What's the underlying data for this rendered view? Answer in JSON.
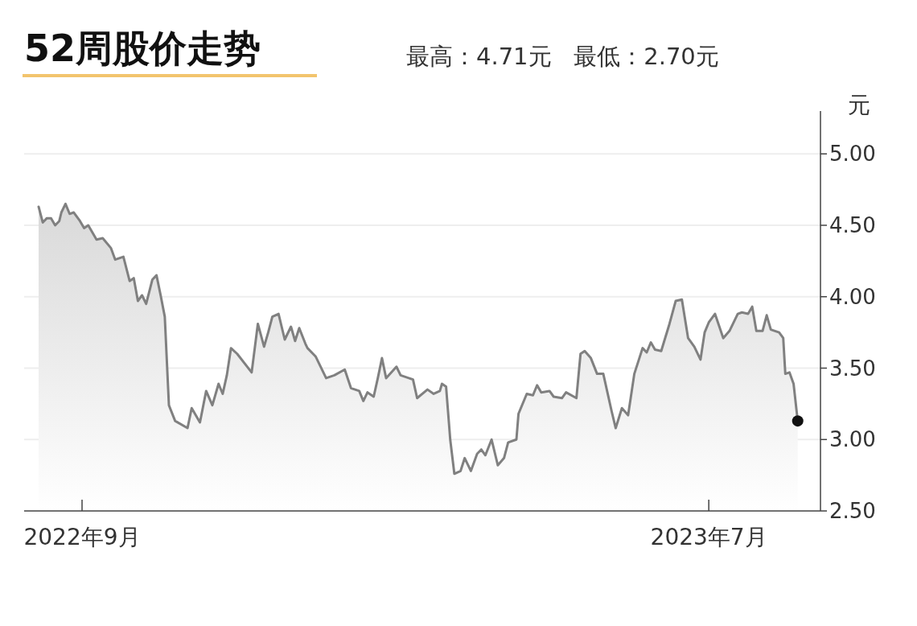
{
  "chart_data": {
    "type": "area",
    "title": "52周股价走势",
    "subtitle": "最高：4.71元   最低：2.70元",
    "ylabel": "元",
    "xlim": [
      "2022-08-04",
      "2023-08-24"
    ],
    "xticks": [
      {
        "value": "2022-09-01",
        "label": "2022年9月"
      },
      {
        "value": "2023-07-01",
        "label": "2023年7月"
      }
    ],
    "ylim": [
      2.5,
      5.3
    ],
    "yticks": [
      {
        "value": 2.5,
        "label": "2.50"
      },
      {
        "value": 3,
        "label": "3.00"
      },
      {
        "value": 3.5,
        "label": "3.50"
      },
      {
        "value": 4,
        "label": "4.00"
      },
      {
        "value": 4.5,
        "label": "4.50"
      },
      {
        "value": 5,
        "label": "5.00"
      }
    ],
    "grid": "y",
    "series": [
      {
        "color": "#808080",
        "marker": "none",
        "x": [
          "2022-08-11",
          "2022-08-13",
          "2022-08-15",
          "2022-08-17",
          "2022-08-19",
          "2022-08-21",
          "2022-08-22",
          "2022-08-24",
          "2022-08-26",
          "2022-08-28",
          "2022-08-31",
          "2022-09-02",
          "2022-09-04",
          "2022-09-08",
          "2022-09-11",
          "2022-09-15",
          "2022-09-17",
          "2022-09-21",
          "2022-09-24",
          "2022-09-26",
          "2022-09-28",
          "2022-09-30",
          "2022-10-02",
          "2022-10-05",
          "2022-10-07",
          "2022-10-09",
          "2022-10-11",
          "2022-10-13",
          "2022-10-16",
          "2022-10-22",
          "2022-10-24",
          "2022-10-28",
          "2022-10-31",
          "2022-11-03",
          "2022-11-06",
          "2022-11-08",
          "2022-11-10",
          "2022-11-12",
          "2022-11-15",
          "2022-11-22",
          "2022-11-25",
          "2022-11-28",
          "2022-11-30",
          "2022-12-02",
          "2022-12-05",
          "2022-12-08",
          "2022-12-11",
          "2022-12-13",
          "2022-12-15",
          "2022-12-18",
          "2022-12-19",
          "2022-12-23",
          "2022-12-28",
          "2023-01-01",
          "2023-01-06",
          "2023-01-09",
          "2023-01-13",
          "2023-01-15",
          "2023-01-17",
          "2023-01-20",
          "2023-01-22",
          "2023-01-24",
          "2023-01-26",
          "2023-01-31",
          "2023-02-02",
          "2023-02-08",
          "2023-02-10",
          "2023-02-15",
          "2023-02-18",
          "2023-02-21",
          "2023-02-22",
          "2023-02-24",
          "2023-02-26",
          "2023-02-28",
          "2023-03-03",
          "2023-03-05",
          "2023-03-08",
          "2023-03-11",
          "2023-03-13",
          "2023-03-15",
          "2023-03-18",
          "2023-03-21",
          "2023-03-24",
          "2023-03-26",
          "2023-03-30",
          "2023-03-31",
          "2023-04-04",
          "2023-04-07",
          "2023-04-09",
          "2023-04-11",
          "2023-04-15",
          "2023-04-17",
          "2023-04-21",
          "2023-04-23",
          "2023-04-28",
          "2023-04-30",
          "2023-05-02",
          "2023-05-05",
          "2023-05-08",
          "2023-05-11",
          "2023-05-15",
          "2023-05-17",
          "2023-05-20",
          "2023-05-23",
          "2023-05-26",
          "2023-05-30",
          "2023-06-01",
          "2023-06-03",
          "2023-06-05",
          "2023-06-08",
          "2023-06-12",
          "2023-06-15",
          "2023-06-18",
          "2023-06-21",
          "2023-06-24",
          "2023-06-27",
          "2023-06-29",
          "2023-07-01",
          "2023-07-04",
          "2023-07-08",
          "2023-07-11",
          "2023-07-15",
          "2023-07-17",
          "2023-07-20",
          "2023-07-22",
          "2023-07-24",
          "2023-07-27",
          "2023-07-29",
          "2023-07-31",
          "2023-08-04",
          "2023-08-06",
          "2023-08-07",
          "2023-08-09",
          "2023-08-11",
          "2023-08-13"
        ],
        "values": [
          4.63,
          4.52,
          4.55,
          4.55,
          4.5,
          4.53,
          4.59,
          4.65,
          4.58,
          4.59,
          4.53,
          4.48,
          4.5,
          4.4,
          4.41,
          4.34,
          4.26,
          4.28,
          4.11,
          4.13,
          3.97,
          4.01,
          3.95,
          4.12,
          4.15,
          4.01,
          3.86,
          3.24,
          3.13,
          3.08,
          3.22,
          3.12,
          3.34,
          3.24,
          3.39,
          3.32,
          3.45,
          3.64,
          3.6,
          3.47,
          3.81,
          3.65,
          3.75,
          3.86,
          3.88,
          3.7,
          3.79,
          3.69,
          3.78,
          3.67,
          3.64,
          3.58,
          3.43,
          3.45,
          3.49,
          3.36,
          3.34,
          3.27,
          3.33,
          3.3,
          3.43,
          3.57,
          3.43,
          3.51,
          3.45,
          3.42,
          3.29,
          3.35,
          3.32,
          3.34,
          3.39,
          3.37,
          3.0,
          2.76,
          2.78,
          2.87,
          2.78,
          2.9,
          2.93,
          2.89,
          3.0,
          2.82,
          2.87,
          2.98,
          3.0,
          3.18,
          3.32,
          3.31,
          3.38,
          3.33,
          3.34,
          3.3,
          3.29,
          3.33,
          3.29,
          3.6,
          3.62,
          3.57,
          3.46,
          3.46,
          3.2,
          3.08,
          3.22,
          3.17,
          3.46,
          3.64,
          3.61,
          3.68,
          3.63,
          3.62,
          3.81,
          3.97,
          3.98,
          3.71,
          3.65,
          3.56,
          3.75,
          3.82,
          3.88,
          3.71,
          3.76,
          3.88,
          3.89,
          3.88,
          3.93,
          3.76,
          3.76,
          3.87,
          3.77,
          3.75,
          3.71,
          3.46,
          3.47,
          3.39,
          3.13
        ]
      },
      {
        "type": "scatter",
        "color": "#111111",
        "marker": "circle",
        "x": [
          "2023-08-13"
        ],
        "values": [
          3.13
        ]
      }
    ]
  }
}
